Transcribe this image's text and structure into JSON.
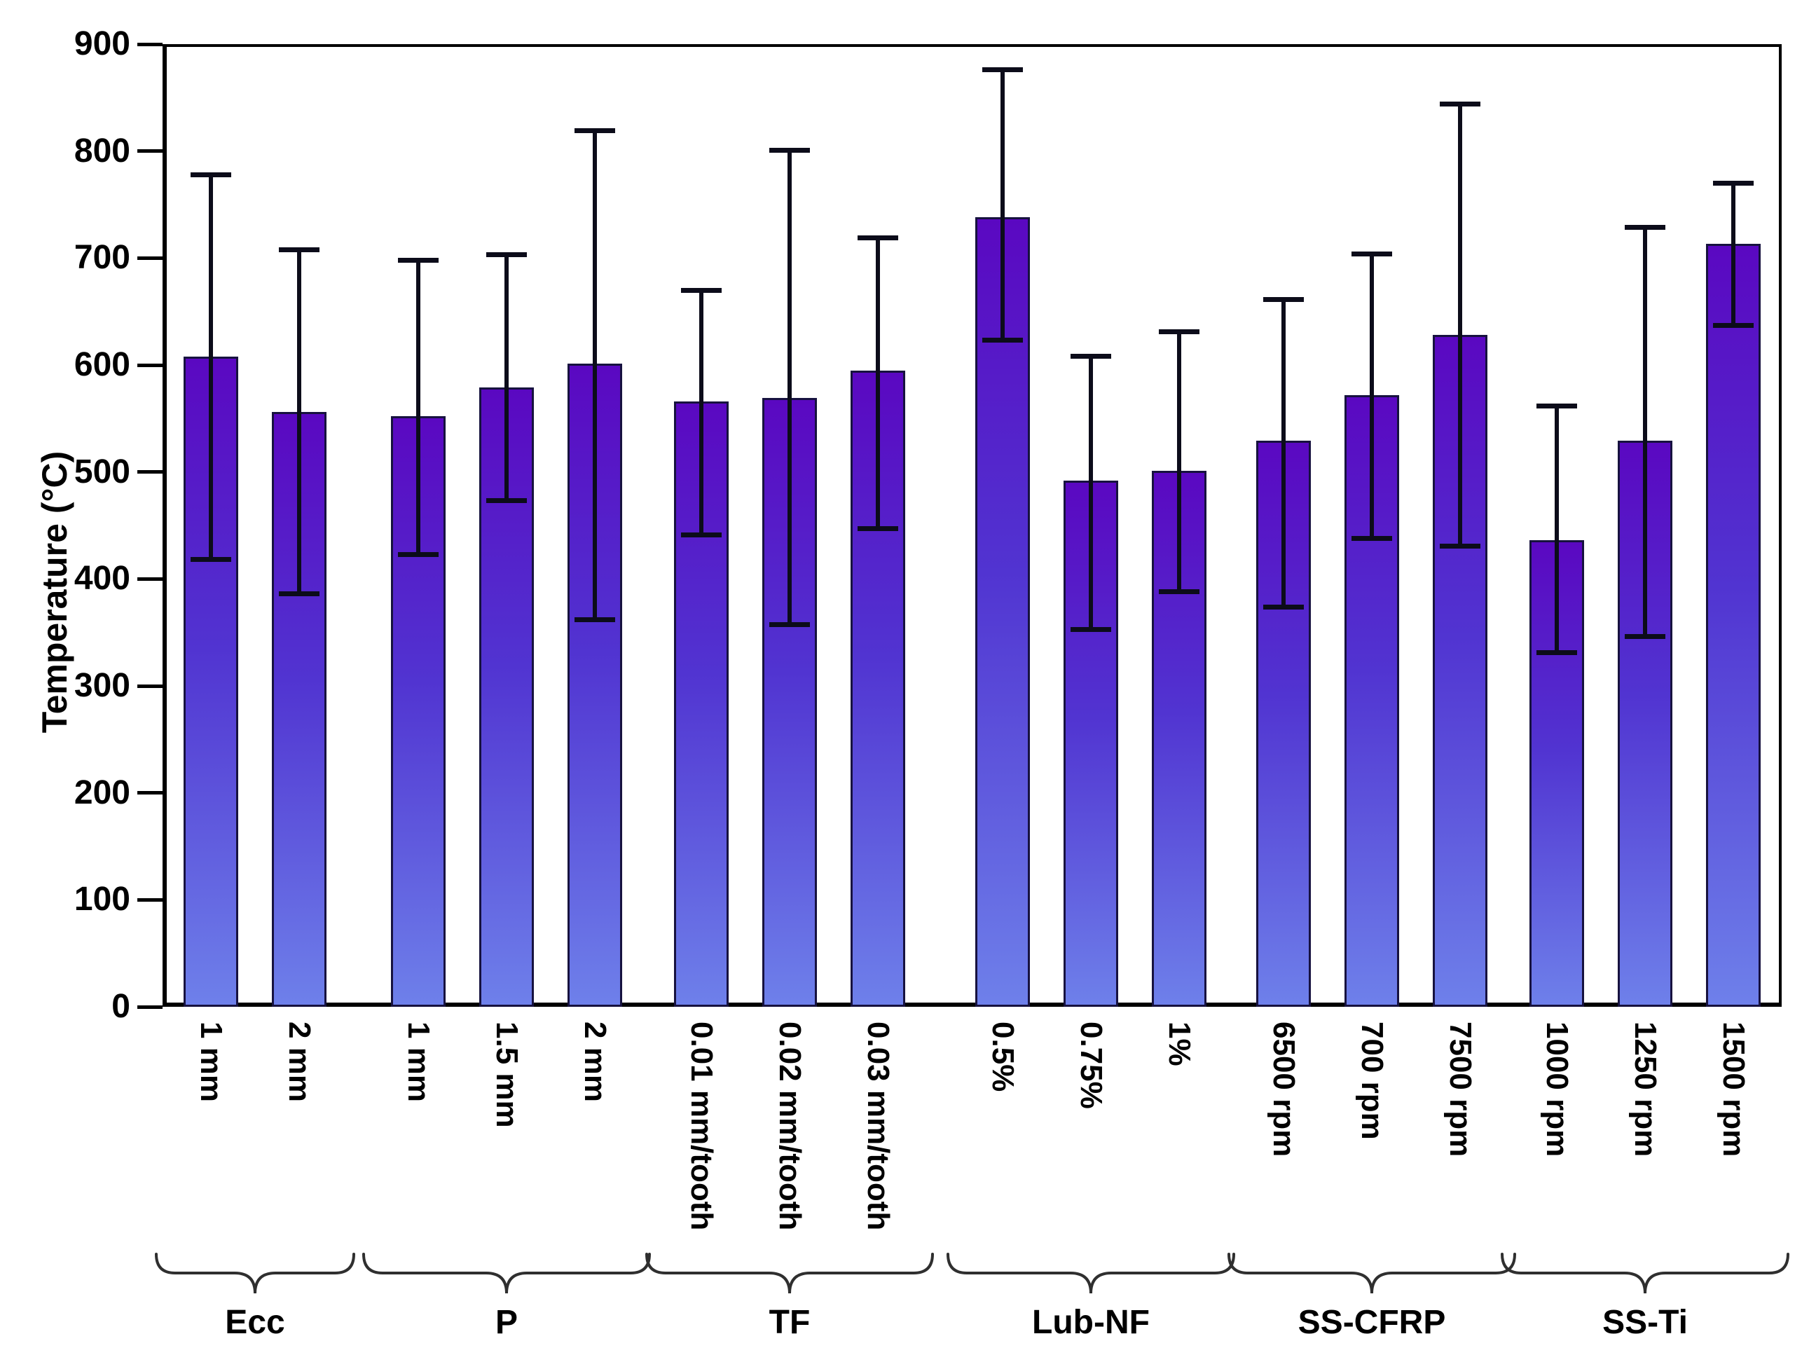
{
  "chart_data": {
    "type": "bar",
    "title": "",
    "xlabel": "",
    "ylabel": "Temperature (°C)",
    "ylim": [
      0,
      900
    ],
    "yticks": [
      0,
      100,
      200,
      300,
      400,
      500,
      600,
      700,
      800,
      900
    ],
    "grid": false,
    "legend": false,
    "error_bars": true,
    "colors": {
      "bar_gradient_top": "#5a08c1",
      "bar_gradient_mid": "#5134d1",
      "bar_gradient_bottom": "#6e80ea",
      "bar_border": "#17123f",
      "error_bar": "#0c0c1a",
      "axis": "#000000",
      "brace": "#2f2f2f",
      "text": "#000000",
      "background": "#ffffff"
    },
    "groups": [
      {
        "label": "Ecc",
        "bars": [
          {
            "label": "1 mm",
            "value": 608,
            "err_low": 418,
            "err_high": 778
          },
          {
            "label": "2 mm",
            "value": 556,
            "err_low": 386,
            "err_high": 708
          }
        ]
      },
      {
        "label": "P",
        "bars": [
          {
            "label": "1 mm",
            "value": 552,
            "err_low": 423,
            "err_high": 698
          },
          {
            "label": "1.5 mm",
            "value": 579,
            "err_low": 473,
            "err_high": 703
          },
          {
            "label": "2 mm",
            "value": 601,
            "err_low": 362,
            "err_high": 819
          }
        ]
      },
      {
        "label": "TF",
        "bars": [
          {
            "label": "0.01 mm/tooth",
            "value": 566,
            "err_low": 441,
            "err_high": 670
          },
          {
            "label": "0.02 mm/tooth",
            "value": 569,
            "err_low": 357,
            "err_high": 801
          },
          {
            "label": "0.03 mm/tooth",
            "value": 595,
            "err_low": 447,
            "err_high": 719
          }
        ]
      },
      {
        "label": "Lub-NF",
        "bars": [
          {
            "label": "0.5%",
            "value": 738,
            "err_low": 623,
            "err_high": 876
          },
          {
            "label": "0.75%",
            "value": 492,
            "err_low": 353,
            "err_high": 608
          },
          {
            "label": "1%",
            "value": 501,
            "err_low": 388,
            "err_high": 631
          }
        ]
      },
      {
        "label": "SS-CFRP",
        "bars": [
          {
            "label": "6500 rpm",
            "value": 529,
            "err_low": 374,
            "err_high": 661
          },
          {
            "label": "700 rpm",
            "value": 572,
            "err_low": 438,
            "err_high": 704
          },
          {
            "label": "7500 rpm",
            "value": 628,
            "err_low": 431,
            "err_high": 844
          }
        ]
      },
      {
        "label": "SS-Ti",
        "bars": [
          {
            "label": "1000 rpm",
            "value": 436,
            "err_low": 331,
            "err_high": 562
          },
          {
            "label": "1250 rpm",
            "value": 529,
            "err_low": 346,
            "err_high": 729
          },
          {
            "label": "1500 rpm",
            "value": 713,
            "err_low": 637,
            "err_high": 770
          }
        ]
      }
    ]
  }
}
